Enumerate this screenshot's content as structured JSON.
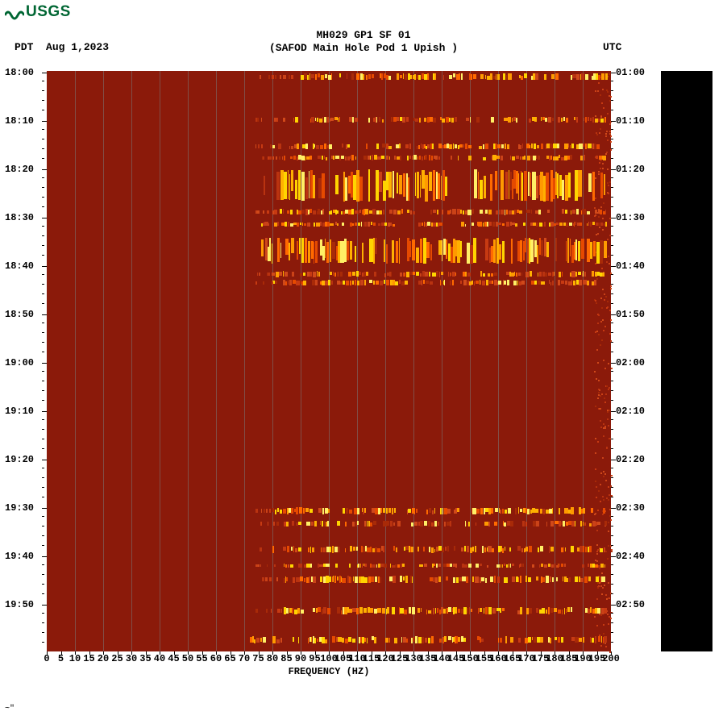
{
  "logo": {
    "text": "USGS",
    "color": "#006633"
  },
  "header": {
    "title_line1": "MH029 GP1 SF 01",
    "title_line2": "(SAFOD Main Hole Pod 1 Upish )",
    "tz_left_label": "PDT",
    "date_left": "Aug 1,2023",
    "tz_right_label": "UTC"
  },
  "plot": {
    "background_color": "#8b1a0a",
    "grid_color": "#7a7a7a",
    "axis_color": "#000000",
    "xaxis_title": "FREQUENCY (HZ)",
    "xlim": [
      0,
      200
    ],
    "xtick_step": 5,
    "xticks": [
      0,
      5,
      10,
      15,
      20,
      25,
      30,
      35,
      40,
      45,
      50,
      55,
      60,
      65,
      70,
      75,
      80,
      85,
      90,
      95,
      100,
      105,
      110,
      115,
      120,
      125,
      130,
      135,
      140,
      145,
      150,
      155,
      160,
      165,
      170,
      175,
      180,
      185,
      190,
      195,
      200
    ],
    "vgrid_step": 10,
    "left_time_labels": [
      "18:00",
      "18:10",
      "18:20",
      "18:30",
      "18:40",
      "18:50",
      "19:00",
      "19:10",
      "19:20",
      "19:30",
      "19:40",
      "19:50"
    ],
    "right_time_labels": [
      "01:00",
      "01:10",
      "01:20",
      "01:30",
      "01:40",
      "01:50",
      "02:00",
      "02:10",
      "02:20",
      "02:30",
      "02:40",
      "02:50"
    ],
    "minor_tick_per_major": 5,
    "bands": [
      {
        "y_min": 0.004,
        "thickness": 0.012,
        "x_start": 0.44,
        "x_end": 0.99,
        "intensity": 0.85
      },
      {
        "y_min": 0.079,
        "thickness": 0.01,
        "x_start": 0.44,
        "x_end": 0.99,
        "intensity": 0.55
      },
      {
        "y_min": 0.125,
        "thickness": 0.01,
        "x_start": 0.4,
        "x_end": 0.99,
        "intensity": 0.7
      },
      {
        "y_min": 0.145,
        "thickness": 0.009,
        "x_start": 0.42,
        "x_end": 0.99,
        "intensity": 0.6
      },
      {
        "y_min": 0.17,
        "thickness": 0.055,
        "x_start": 0.4,
        "x_end": 0.99,
        "intensity": 0.9
      },
      {
        "y_min": 0.238,
        "thickness": 0.01,
        "x_start": 0.4,
        "x_end": 0.99,
        "intensity": 0.55
      },
      {
        "y_min": 0.26,
        "thickness": 0.008,
        "x_start": 0.38,
        "x_end": 0.99,
        "intensity": 0.5
      },
      {
        "y_min": 0.287,
        "thickness": 0.045,
        "x_start": 0.38,
        "x_end": 0.99,
        "intensity": 0.9
      },
      {
        "y_min": 0.345,
        "thickness": 0.01,
        "x_start": 0.4,
        "x_end": 0.99,
        "intensity": 0.55
      },
      {
        "y_min": 0.36,
        "thickness": 0.01,
        "x_start": 0.4,
        "x_end": 0.99,
        "intensity": 0.52
      },
      {
        "y_min": 0.752,
        "thickness": 0.012,
        "x_start": 0.4,
        "x_end": 0.99,
        "intensity": 0.8
      },
      {
        "y_min": 0.775,
        "thickness": 0.01,
        "x_start": 0.42,
        "x_end": 0.99,
        "intensity": 0.55
      },
      {
        "y_min": 0.818,
        "thickness": 0.012,
        "x_start": 0.4,
        "x_end": 0.99,
        "intensity": 0.8
      },
      {
        "y_min": 0.848,
        "thickness": 0.008,
        "x_start": 0.42,
        "x_end": 0.99,
        "intensity": 0.5
      },
      {
        "y_min": 0.87,
        "thickness": 0.012,
        "x_start": 0.42,
        "x_end": 0.99,
        "intensity": 0.78
      },
      {
        "y_min": 0.924,
        "thickness": 0.012,
        "x_start": 0.42,
        "x_end": 0.99,
        "intensity": 0.78
      },
      {
        "y_min": 0.974,
        "thickness": 0.012,
        "x_start": 0.36,
        "x_end": 0.99,
        "intensity": 0.82
      }
    ],
    "right_edge_noise": {
      "x_start": 0.97,
      "x_end": 1.0
    },
    "stripe_colors_high": [
      "#ff6a00",
      "#ffd400",
      "#ffef66",
      "#ff9a00",
      "#ffb000",
      "#e64a00"
    ],
    "stripe_colors_low": [
      "#c73a12",
      "#d0491a",
      "#a82a08",
      "#b93310",
      "#ca4218"
    ],
    "label_fontsize": 12,
    "title_fontsize": 13
  },
  "colorbar": {
    "background": "#000000"
  },
  "footer": {
    "mark": "~\""
  }
}
